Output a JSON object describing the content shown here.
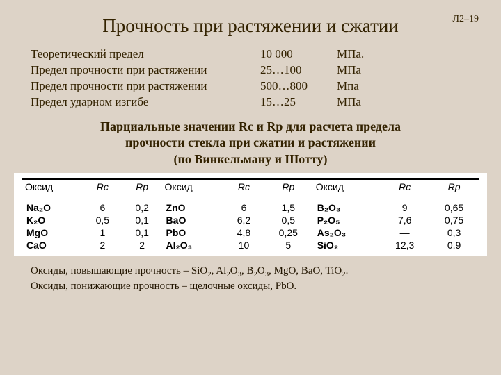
{
  "reference": "Л2–19",
  "title": "Прочность при растяжении и сжатии",
  "specs": [
    {
      "label": "Теоретический предел",
      "value": "10 000",
      "unit": "МПа."
    },
    {
      "label": "Предел прочности при растяжении",
      "value": "25…100",
      "unit": "МПа"
    },
    {
      "label": "Предел прочности при растяжении",
      "value": "500…800",
      "unit": "Мпа"
    },
    {
      "label": "Предел ударном изгибе",
      "value": "15…25",
      "unit": "МПа"
    }
  ],
  "subtitle_l1": "Парциальные значении Rс и Rр для расчета предела",
  "subtitle_l2": "прочности стекла при сжатии и растяжении",
  "subtitle_l3": "(по Винкельману и Шотту)",
  "table": {
    "headers": {
      "oxide": "Оксид",
      "rc": "Rс",
      "rp": "Rр"
    },
    "rows": [
      {
        "ox1": "Na₂O",
        "rc1": "6",
        "rp1": "0,2",
        "ox2": "ZnO",
        "rc2": "6",
        "rp2": "1,5",
        "ox3": "B₂O₃",
        "rc3": "9",
        "rp3": "0,65"
      },
      {
        "ox1": "K₂O",
        "rc1": "0,5",
        "rp1": "0,1",
        "ox2": "BaO",
        "rc2": "6,2",
        "rp2": "0,5",
        "ox3": "P₂O₅",
        "rc3": "7,6",
        "rp3": "0,75"
      },
      {
        "ox1": "MgO",
        "rc1": "1",
        "rp1": "0,1",
        "ox2": "PbO",
        "rc2": "4,8",
        "rp2": "0,25",
        "ox3": "As₂O₃",
        "rc3": "—",
        "rp3": "0,3"
      },
      {
        "ox1": "CaO",
        "rc1": "2",
        "rp1": "2",
        "ox2": "Al₂O₃",
        "rc2": "10",
        "rp2": "5",
        "ox3": "SiO₂",
        "rc3": "12,3",
        "rp3": "0,9"
      }
    ]
  },
  "note1_a": "Оксиды, повышающие прочность – SiO",
  "note1_b": ", Al",
  "note1_c": "O",
  "note1_d": ", B",
  "note1_e": "O",
  "note1_f": ", MgO,  BaO, TiO",
  "note1_g": ".",
  "note2": "Оксиды, понижающие прочность – щелочные оксиды, PbO.",
  "subs": {
    "two": "2",
    "three": "3",
    "five": "5"
  }
}
